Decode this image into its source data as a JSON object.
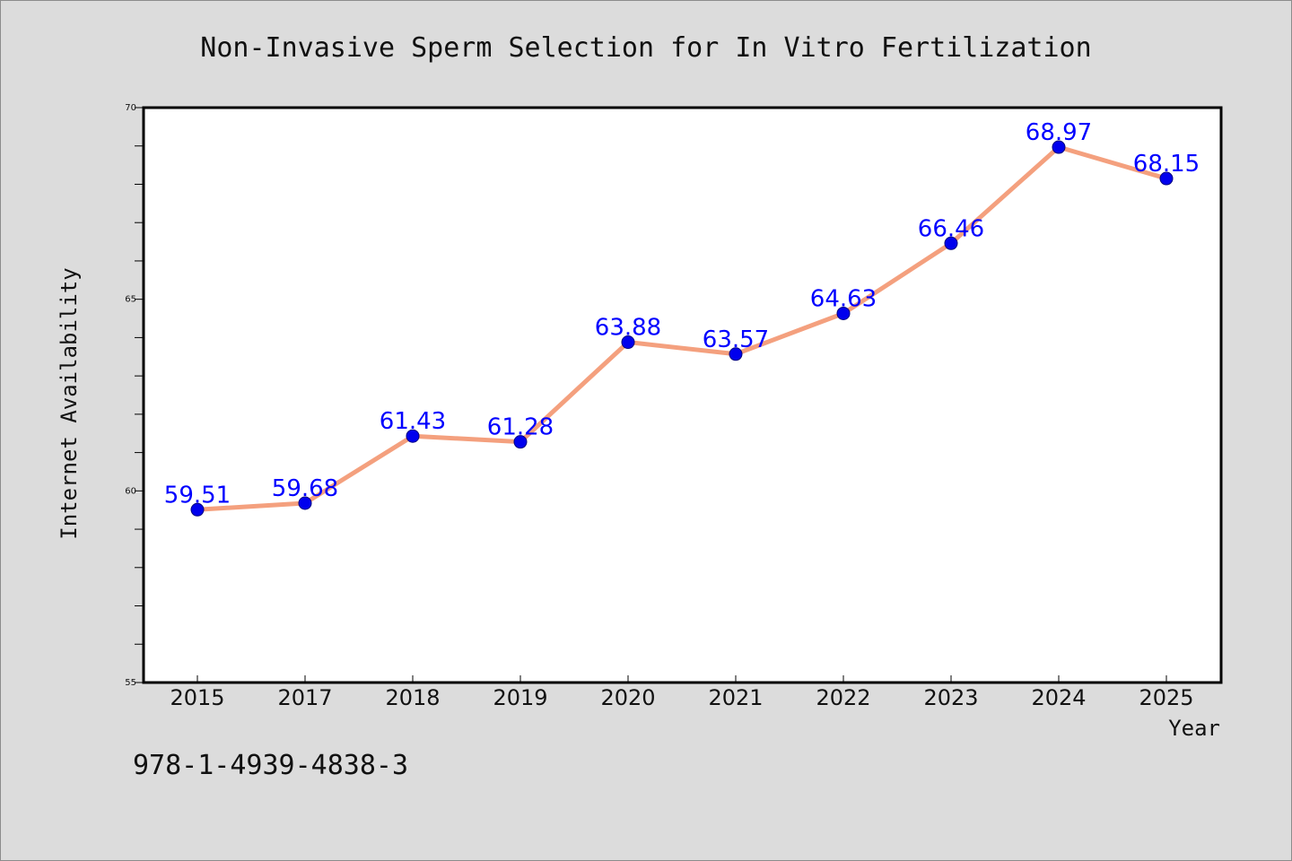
{
  "chart_data": {
    "type": "line",
    "title": "Non-Invasive Sperm Selection for In Vitro Fertilization",
    "xlabel": "Year",
    "ylabel": "Internet Availability",
    "categories": [
      "2015",
      "2017",
      "2018",
      "2019",
      "2020",
      "2021",
      "2022",
      "2023",
      "2024",
      "2025"
    ],
    "series": [
      {
        "values": [
          59.51,
          59.68,
          61.43,
          61.28,
          63.88,
          63.57,
          64.63,
          66.46,
          68.97,
          68.15
        ],
        "data_labels": [
          "59.51",
          "59.68",
          "61.43",
          "61.28",
          "63.88",
          "63.57",
          "64.63",
          "66.46",
          "68.97",
          "68.15"
        ]
      }
    ],
    "ylim": [
      55,
      70
    ],
    "y_ticks": [
      "55",
      "60",
      "65",
      "70"
    ],
    "y_minor_step": 1,
    "grid": false,
    "legend": "none",
    "colors": {
      "line": "#f4a07e",
      "marker": "#0000ee",
      "marker_edge": "#000080",
      "data_label": "#0000ff",
      "plot_background": "#ffffff",
      "figure_background": "#dcdcdc"
    }
  },
  "footnote": "978-1-4939-4838-3"
}
